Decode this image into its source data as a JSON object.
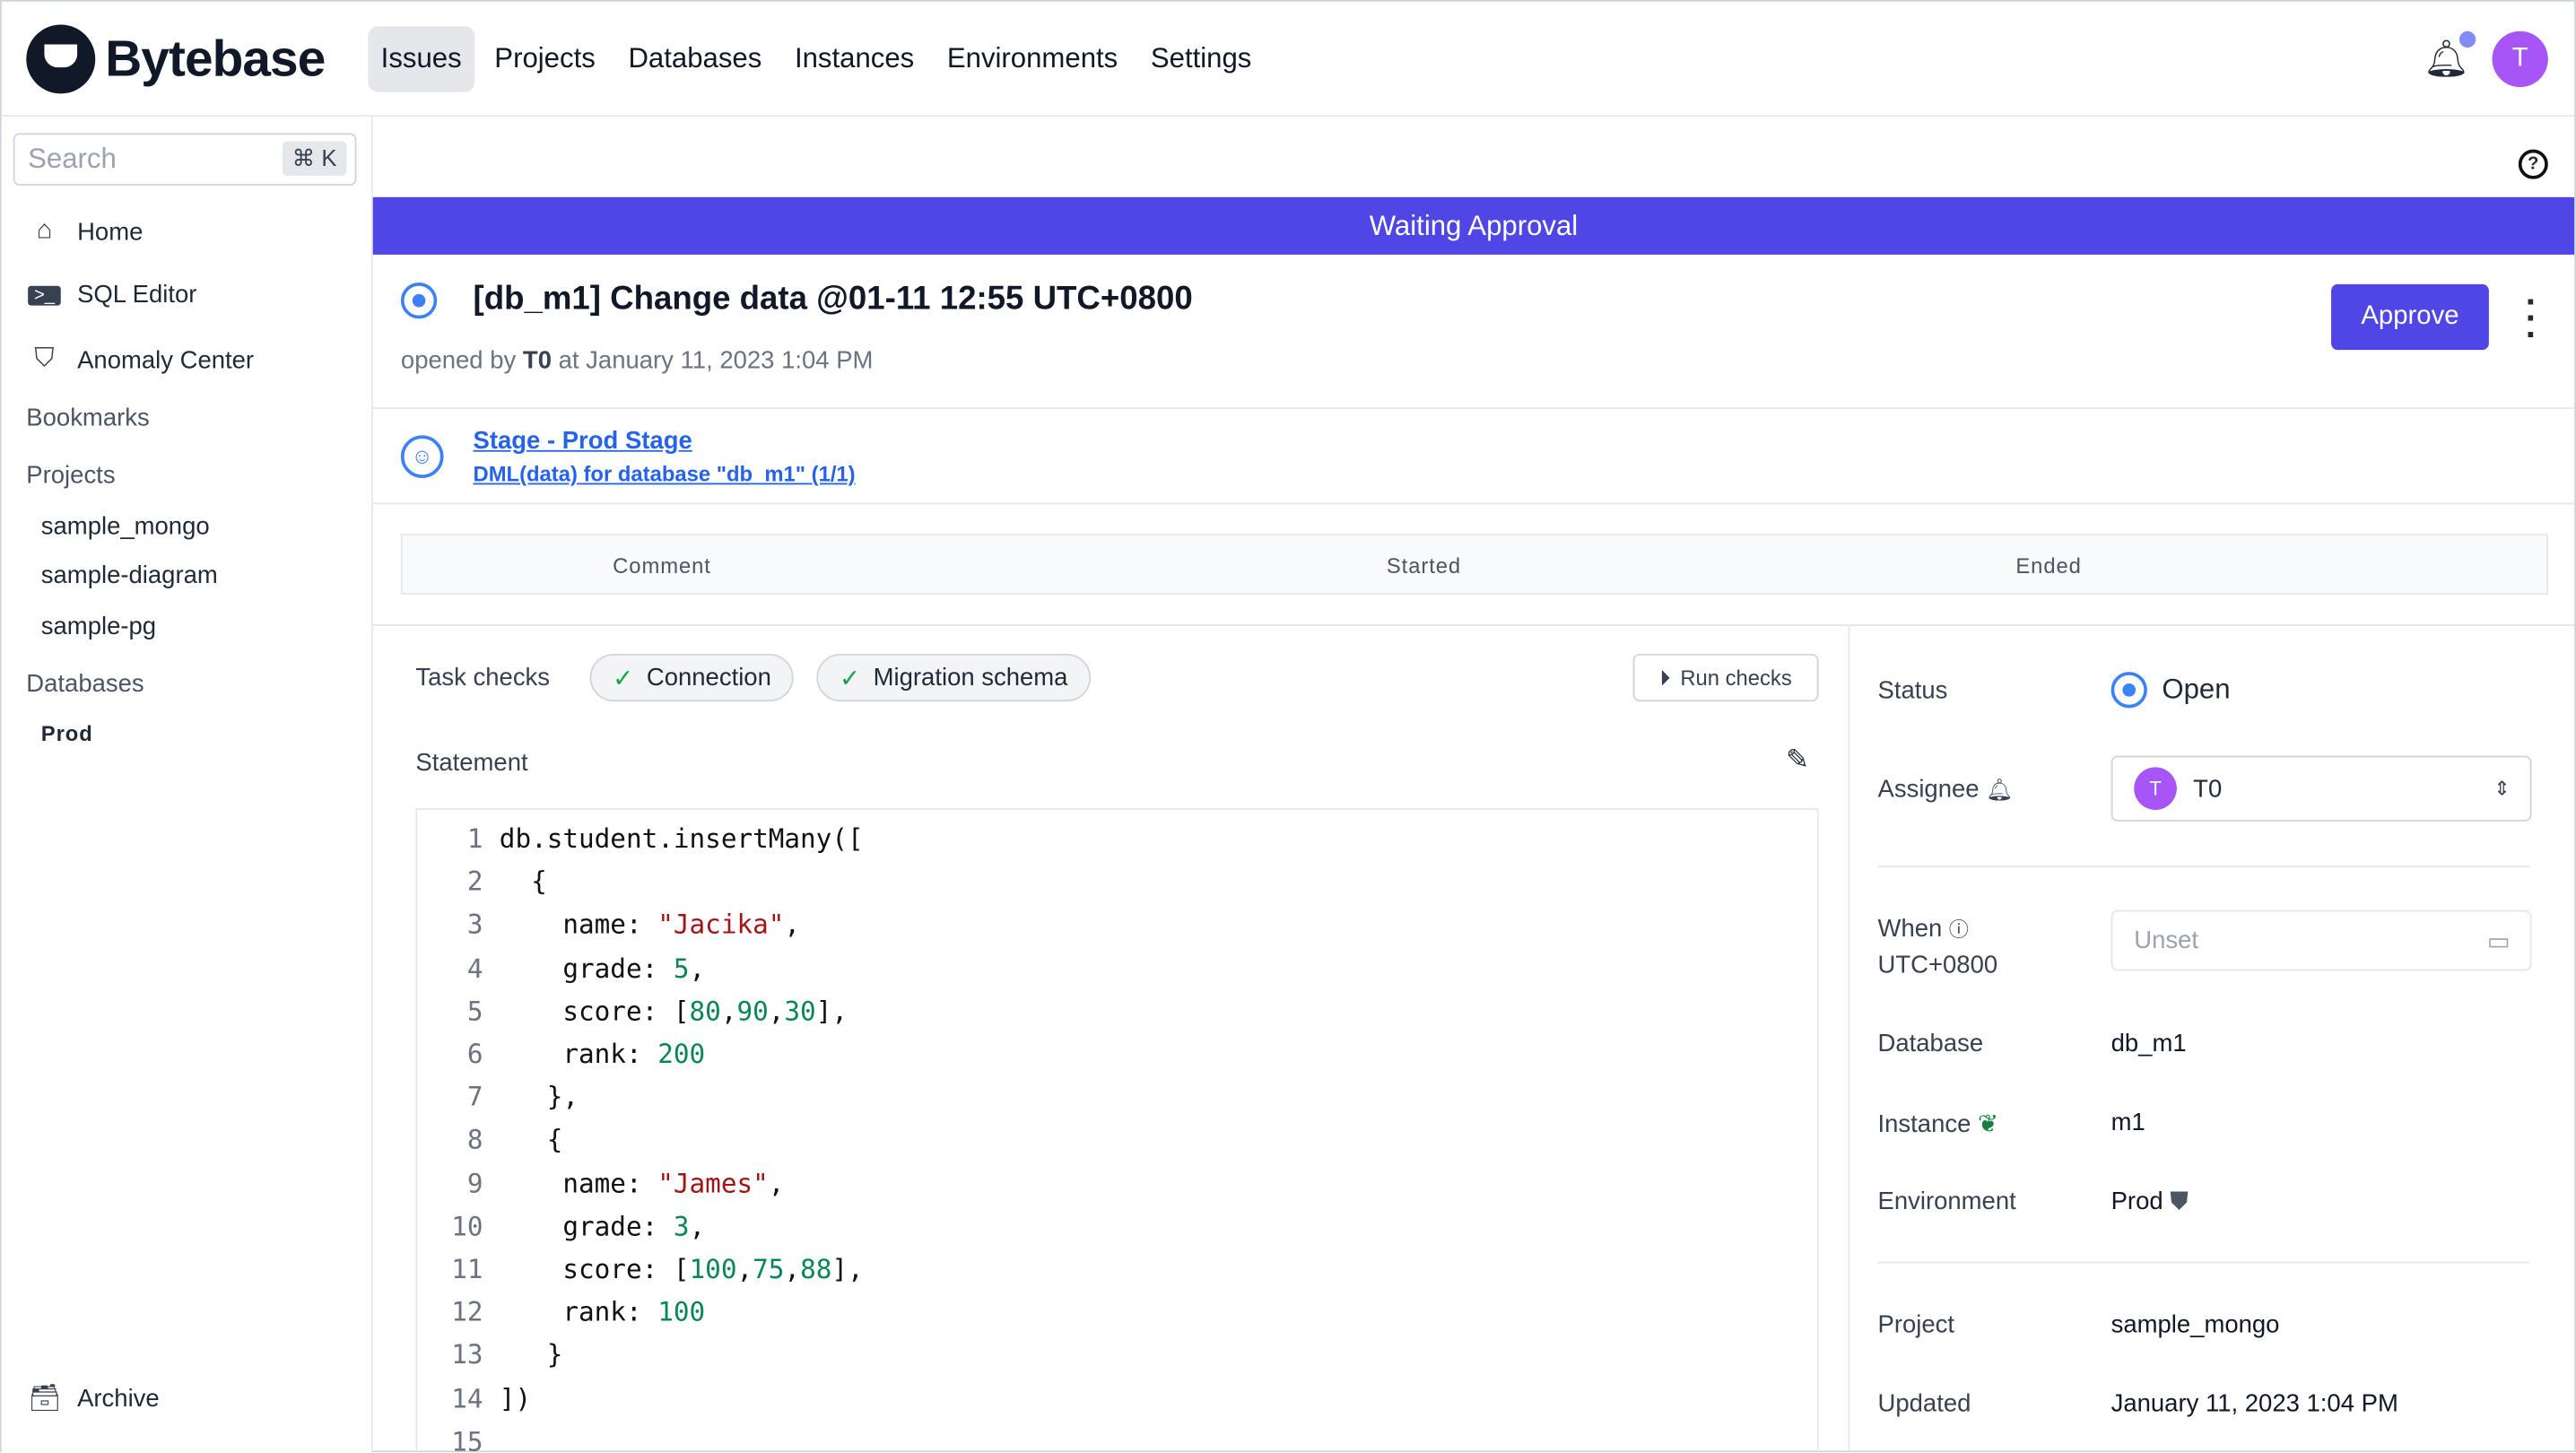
{
  "header": {
    "brand": "Bytebase",
    "nav": [
      "Issues",
      "Projects",
      "Databases",
      "Instances",
      "Environments",
      "Settings"
    ],
    "active_nav": "Issues",
    "avatar_initial": "T",
    "accent": "#4f46e5"
  },
  "sidebar": {
    "search_placeholder": "Search",
    "shortcut": "⌘ K",
    "items": [
      {
        "label": "Home",
        "icon": "home-icon"
      },
      {
        "label": "SQL Editor",
        "icon": "terminal-icon"
      },
      {
        "label": "Anomaly Center",
        "icon": "shield-icon"
      }
    ],
    "bookmarks": "Bookmarks",
    "projects_label": "Projects",
    "projects": [
      "sample_mongo",
      "sample-diagram",
      "sample-pg"
    ],
    "databases_label": "Databases",
    "environments": [
      "Prod"
    ],
    "archive": "Archive"
  },
  "issue": {
    "banner": "Waiting Approval",
    "title": "[db_m1] Change data @01-11 12:55 UTC+0800",
    "opened_prefix": "opened by",
    "opened_by": "T0",
    "opened_at": "at January 11, 2023 1:04 PM",
    "approve": "Approve",
    "stage": "Stage - Prod Stage",
    "task": "DML(data) for database \"db_m1\" (1/1)",
    "table_headers": [
      "Comment",
      "Started",
      "Ended"
    ]
  },
  "checks": {
    "label": "Task checks",
    "items": [
      "Connection",
      "Migration schema"
    ],
    "run": "Run checks"
  },
  "statement": {
    "label": "Statement",
    "lines": [
      [
        [
          "c",
          "db.student.insertMany(["
        ]
      ],
      [
        [
          "c",
          "  {"
        ]
      ],
      [
        [
          "c",
          "    name: "
        ],
        [
          "s",
          "\"Jacika\""
        ],
        [
          "c",
          ","
        ]
      ],
      [
        [
          "c",
          "    grade: "
        ],
        [
          "n",
          "5"
        ],
        [
          "c",
          ","
        ]
      ],
      [
        [
          "c",
          "    score: ["
        ],
        [
          "n",
          "80"
        ],
        [
          "c",
          ","
        ],
        [
          "n",
          "90"
        ],
        [
          "c",
          ","
        ],
        [
          "n",
          "30"
        ],
        [
          "c",
          "],"
        ]
      ],
      [
        [
          "c",
          "    rank: "
        ],
        [
          "n",
          "200"
        ]
      ],
      [
        [
          "c",
          "   },"
        ]
      ],
      [
        [
          "c",
          "   {"
        ]
      ],
      [
        [
          "c",
          "    name: "
        ],
        [
          "s",
          "\"James\""
        ],
        [
          "c",
          ","
        ]
      ],
      [
        [
          "c",
          "    grade: "
        ],
        [
          "n",
          "3"
        ],
        [
          "c",
          ","
        ]
      ],
      [
        [
          "c",
          "    score: ["
        ],
        [
          "n",
          "100"
        ],
        [
          "c",
          ","
        ],
        [
          "n",
          "75"
        ],
        [
          "c",
          ","
        ],
        [
          "n",
          "88"
        ],
        [
          "c",
          "],"
        ]
      ],
      [
        [
          "c",
          "    rank: "
        ],
        [
          "n",
          "100"
        ]
      ],
      [
        [
          "c",
          "   }"
        ]
      ],
      [
        [
          "c",
          "])"
        ]
      ],
      [
        [
          "c",
          ""
        ]
      ]
    ]
  },
  "details": {
    "status_label": "Status",
    "status": "Open",
    "assignee_label": "Assignee",
    "assignee": "T0",
    "assignee_initial": "T",
    "when_label": "When",
    "timezone": "UTC+0800",
    "when_placeholder": "Unset",
    "database_label": "Database",
    "database": "db_m1",
    "instance_label": "Instance",
    "instance": "m1",
    "environment_label": "Environment",
    "environment": "Prod",
    "project_label": "Project",
    "project": "sample_mongo",
    "updated_label": "Updated",
    "updated": "January 11, 2023 1:04 PM"
  }
}
